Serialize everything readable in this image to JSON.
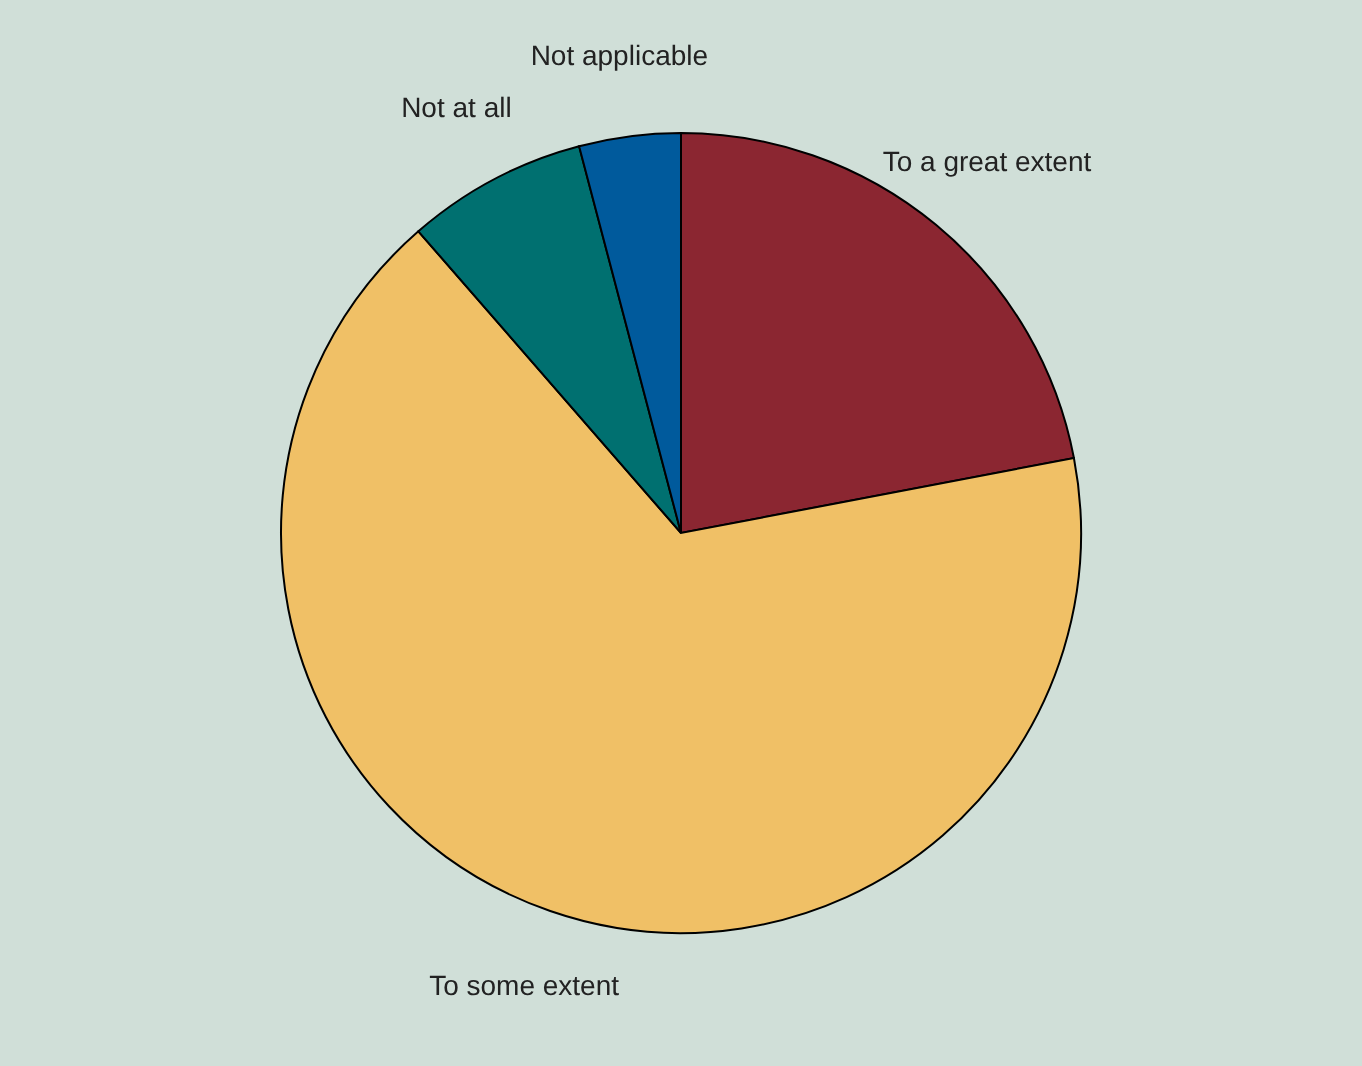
{
  "chart_data": {
    "type": "pie",
    "categories": [
      "To a great extent",
      "To some extent",
      "Not at all",
      "Not applicable"
    ],
    "values": [
      22.0,
      66.6,
      7.3,
      4.1
    ],
    "colors": [
      "#8b2631",
      "#f0c066",
      "#007070",
      "#005a9c"
    ],
    "legend": false
  }
}
